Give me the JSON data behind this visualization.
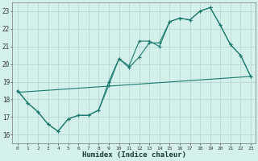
{
  "xlabel": "Humidex (Indice chaleur)",
  "bg_color": "#d4f0eb",
  "grid_color": "#b8d8d4",
  "line_color": "#1a7a6e",
  "xlim": [
    -0.5,
    23.5
  ],
  "ylim": [
    15.5,
    23.5
  ],
  "yticks": [
    16,
    17,
    18,
    19,
    20,
    21,
    22,
    23
  ],
  "xticks": [
    0,
    1,
    2,
    3,
    4,
    5,
    6,
    7,
    8,
    9,
    10,
    11,
    12,
    13,
    14,
    15,
    16,
    17,
    18,
    19,
    20,
    21,
    22,
    23
  ],
  "series1": {
    "x": [
      0,
      1,
      2,
      3,
      4,
      5,
      6,
      7,
      8,
      9,
      10,
      11,
      12,
      13,
      14,
      15,
      16,
      17,
      18,
      19,
      20,
      21,
      22,
      23
    ],
    "y": [
      18.5,
      17.8,
      17.3,
      16.6,
      16.2,
      16.9,
      17.1,
      17.1,
      17.4,
      19.0,
      20.3,
      19.8,
      20.4,
      21.2,
      21.2,
      22.4,
      22.6,
      22.5,
      23.0,
      23.2,
      22.2,
      21.1,
      20.5,
      19.3
    ]
  },
  "series2": {
    "x": [
      0,
      1,
      2,
      3,
      4,
      5,
      6,
      7,
      8,
      9,
      10,
      11,
      12,
      13,
      14,
      15,
      16,
      17,
      18,
      19,
      20,
      21,
      22,
      23
    ],
    "y": [
      18.5,
      17.8,
      17.3,
      16.6,
      16.2,
      16.9,
      17.1,
      17.1,
      17.4,
      18.8,
      20.3,
      19.9,
      21.3,
      21.3,
      21.0,
      22.4,
      22.6,
      22.5,
      23.0,
      23.2,
      22.2,
      21.1,
      20.5,
      19.3
    ]
  },
  "series3": {
    "x": [
      0,
      23
    ],
    "y": [
      18.4,
      19.3
    ]
  }
}
